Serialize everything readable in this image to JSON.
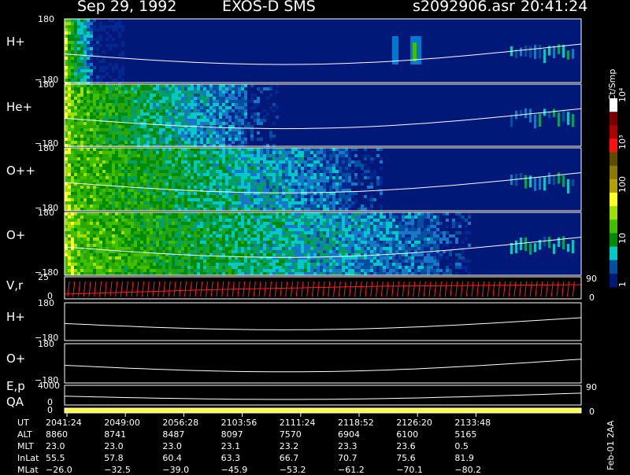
{
  "header": {
    "date": "Sep 29, 1992",
    "title": "EXOS-D SMS",
    "file": "s2092906.asr",
    "time": "20:41:24"
  },
  "chart_data": {
    "type": "heatmap",
    "time_axis": [
      "2041:24",
      "2049:00",
      "2056:28",
      "2103:56",
      "2111:24",
      "2118:52",
      "2126:20",
      "2133:48"
    ],
    "panels": [
      {
        "label": "H+",
        "ylim": [
          -180,
          180
        ],
        "tick_top": "180",
        "tick_bot": "−180"
      },
      {
        "label": "He+",
        "ylim": [
          -180,
          180
        ],
        "tick_top": "180",
        "tick_bot": "−180"
      },
      {
        "label": "O++",
        "ylim": [
          -180,
          180
        ],
        "tick_top": "180",
        "tick_bot": "−180"
      },
      {
        "label": "O+",
        "ylim": [
          -180,
          180
        ],
        "tick_top": "180",
        "tick_bot": "−180"
      },
      {
        "label": "V,r",
        "tick_top": "25",
        "tick_bot": "0",
        "right_top": "90",
        "right_bot": "0"
      },
      {
        "label": "H+",
        "tick_top": "180",
        "tick_bot": "−180"
      },
      {
        "label": "O+",
        "tick_top": "180",
        "tick_bot": "−180"
      },
      {
        "label": "E,p",
        "tick_top": "4000",
        "tick_bot": "0",
        "right_top": "90"
      },
      {
        "label": "QA",
        "tick_bot": "0",
        "right_bot": "0"
      }
    ],
    "colorbar": {
      "unit": "Ct/Smp",
      "ticks": [
        "10⁴",
        "10³",
        "100",
        "10",
        "1"
      ],
      "colors": [
        "#ffffff",
        "#7a0000",
        "#b00000",
        "#ff1010",
        "#5e4b00",
        "#8a7a00",
        "#b4a000",
        "#ffff20",
        "#a0e000",
        "#40c000",
        "#008c00",
        "#00c8c8",
        "#0050a0",
        "#001878"
      ]
    },
    "table": {
      "rows": [
        {
          "name": "UT",
          "values": [
            "2041:24",
            "2049:00",
            "2056:28",
            "2103:56",
            "2111:24",
            "2118:52",
            "2126:20",
            "2133:48"
          ]
        },
        {
          "name": "ALT",
          "values": [
            "8860",
            "8741",
            "8487",
            "8097",
            "7570",
            "6904",
            "6100",
            "5165"
          ]
        },
        {
          "name": "MLT",
          "values": [
            "23.0",
            "23.0",
            "23.0",
            "23.1",
            "23.2",
            "23.3",
            "23.6",
            "0.5"
          ]
        },
        {
          "name": "InLat",
          "values": [
            "55.5",
            "57.8",
            "60.4",
            "63.3",
            "66.7",
            "70.7",
            "75.6",
            "81.9"
          ]
        },
        {
          "name": "MLat",
          "values": [
            "−26.0",
            "−32.5",
            "−39.0",
            "−45.9",
            "−53.2",
            "−61.2",
            "−70.1",
            "−80.2"
          ]
        }
      ]
    },
    "footer_note": "Feb-01 2AA"
  }
}
